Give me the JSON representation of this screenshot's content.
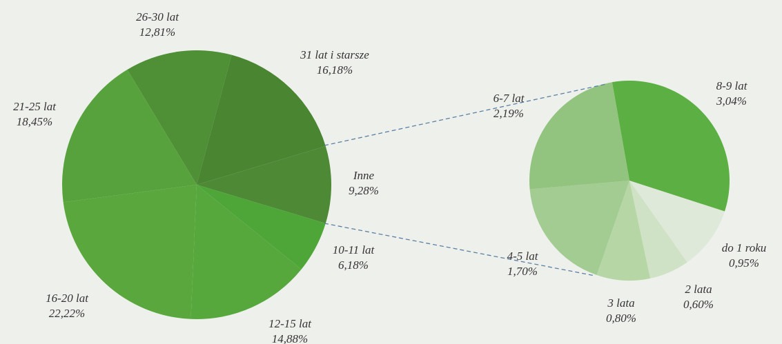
{
  "chart_data": [
    {
      "type": "pie",
      "categories": [
        "26-30 lat",
        "31 lat i starsze",
        "Inne",
        "10-11 lat",
        "12-15 lat",
        "16-20 lat",
        "21-25 lat"
      ],
      "values": [
        12.81,
        16.18,
        9.28,
        6.18,
        14.88,
        22.22,
        18.45
      ],
      "value_labels": [
        "12,81%",
        "16,18%",
        "9,28%",
        "6,18%",
        "14,88%",
        "22,22%",
        "18,45%"
      ],
      "colors": [
        "#4f8f35",
        "#4a8532",
        "#4e8a36",
        "#4fa638",
        "#56a83c",
        "#5aa73e",
        "#58a23d"
      ]
    },
    {
      "type": "pie",
      "categories": [
        "8-9 lat",
        "do 1 roku",
        "2 lata",
        "3 lata",
        "4-5 lat",
        "6-7 lat"
      ],
      "values": [
        3.04,
        0.95,
        0.6,
        0.8,
        1.7,
        2.19
      ],
      "value_labels": [
        "3,04%",
        "0,95%",
        "0,60%",
        "0,80%",
        "1,70%",
        "2,19%"
      ],
      "colors": [
        "#5cb043",
        "#dfe9da",
        "#cfe2c5",
        "#b6d6a6",
        "#a3cc93",
        "#93c47f"
      ]
    }
  ]
}
